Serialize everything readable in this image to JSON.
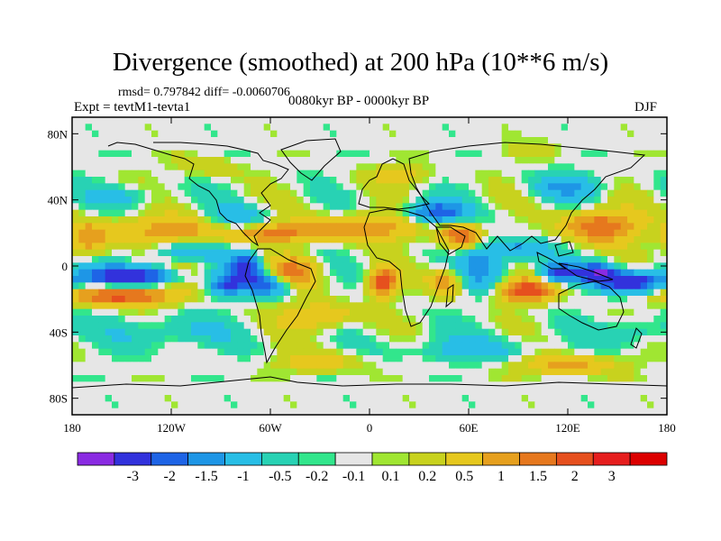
{
  "chart_data": {
    "type": "heatmap",
    "title": "Divergence (smoothed) at 200 hPa (10**6 m/s)",
    "stats_text": "rmsd= 0.797842 diff= -0.0060706",
    "experiment": "Expt = tevtM1-tevta1",
    "period": "0080kyr BP - 0000kyr BP",
    "season": "DJF",
    "x_range": [
      -180,
      180
    ],
    "y_range": [
      -90,
      90
    ],
    "x_ticks": [
      {
        "value": -180,
        "label": "180"
      },
      {
        "value": -120,
        "label": "120W"
      },
      {
        "value": -60,
        "label": "60W"
      },
      {
        "value": 0,
        "label": "0"
      },
      {
        "value": 60,
        "label": "60E"
      },
      {
        "value": 120,
        "label": "120E"
      },
      {
        "value": 180,
        "label": "180"
      }
    ],
    "y_ticks": [
      {
        "value": 80,
        "label": "80N"
      },
      {
        "value": 40,
        "label": "40N"
      },
      {
        "value": 0,
        "label": "0"
      },
      {
        "value": -40,
        "label": "40S"
      },
      {
        "value": -80,
        "label": "80S"
      }
    ],
    "colorbar": {
      "colors": [
        "#8a2be2",
        "#3232dc",
        "#1e64e6",
        "#1e96e6",
        "#28bee6",
        "#28d2b4",
        "#32e68c",
        "#e6e6e6",
        "#a0e632",
        "#c8d21e",
        "#e6c81e",
        "#e6a01e",
        "#e6781e",
        "#e6501e",
        "#e61e1e",
        "#dc0000"
      ],
      "labels": [
        "-3",
        "-2",
        "-1.5",
        "-1",
        "-0.5",
        "-0.2",
        "-0.1",
        "0.1",
        "0.2",
        "0.5",
        "1",
        "1.5",
        "2",
        "3"
      ]
    },
    "field_anomalies": [
      {
        "lon": 158,
        "lat": -10,
        "value": -2.8,
        "rx": 18,
        "ry": 6
      },
      {
        "lon": 138,
        "lat": -4,
        "value": -2.6,
        "rx": 12,
        "ry": 5
      },
      {
        "lon": 115,
        "lat": -4,
        "value": -2.0,
        "rx": 12,
        "ry": 6
      },
      {
        "lon": 140,
        "lat": 24,
        "value": 2.0,
        "rx": 22,
        "ry": 10
      },
      {
        "lon": 95,
        "lat": -15,
        "value": 2.4,
        "rx": 16,
        "ry": 7
      },
      {
        "lon": 90,
        "lat": 10,
        "value": -1.2,
        "rx": 18,
        "ry": 6
      },
      {
        "lon": 40,
        "lat": 32,
        "value": -2.0,
        "rx": 18,
        "ry": 7
      },
      {
        "lon": 55,
        "lat": 18,
        "value": 2.0,
        "rx": 12,
        "ry": 8
      },
      {
        "lon": 68,
        "lat": 0,
        "value": -1.2,
        "rx": 14,
        "ry": 14
      },
      {
        "lon": 46,
        "lat": -10,
        "value": 1.3,
        "rx": 10,
        "ry": 8
      },
      {
        "lon": 8,
        "lat": -10,
        "value": 2.6,
        "rx": 8,
        "ry": 8
      },
      {
        "lon": 2,
        "lat": 24,
        "value": 1.4,
        "rx": 30,
        "ry": 8
      },
      {
        "lon": -55,
        "lat": 20,
        "value": 1.6,
        "rx": 30,
        "ry": 6
      },
      {
        "lon": -45,
        "lat": -4,
        "value": 1.6,
        "rx": 14,
        "ry": 10
      },
      {
        "lon": -75,
        "lat": -2,
        "value": -2.2,
        "rx": 10,
        "ry": 10
      },
      {
        "lon": -60,
        "lat": -12,
        "value": -1.8,
        "rx": 14,
        "ry": 6
      },
      {
        "lon": -88,
        "lat": -12,
        "value": -1.6,
        "rx": 10,
        "ry": 6
      },
      {
        "lon": -80,
        "lat": 28,
        "value": -1.0,
        "rx": 18,
        "ry": 8
      },
      {
        "lon": -140,
        "lat": -6,
        "value": -2.6,
        "rx": 38,
        "ry": 6
      },
      {
        "lon": -150,
        "lat": -18,
        "value": 2.3,
        "rx": 30,
        "ry": 6
      },
      {
        "lon": -110,
        "lat": -5,
        "value": 1.2,
        "rx": 18,
        "ry": 8
      },
      {
        "lon": -110,
        "lat": 8,
        "value": -0.8,
        "rx": 24,
        "ry": 6
      },
      {
        "lon": -120,
        "lat": 22,
        "value": 1.2,
        "rx": 40,
        "ry": 8
      },
      {
        "lon": -150,
        "lat": 42,
        "value": -0.6,
        "rx": 22,
        "ry": 6
      },
      {
        "lon": -170,
        "lat": 16,
        "value": 1.4,
        "rx": 12,
        "ry": 10
      },
      {
        "lon": 120,
        "lat": 48,
        "value": -1.0,
        "rx": 20,
        "ry": 8
      },
      {
        "lon": -30,
        "lat": -30,
        "value": 1.1,
        "rx": 22,
        "ry": 8
      },
      {
        "lon": -120,
        "lat": -40,
        "value": -0.6,
        "rx": 34,
        "ry": 10
      },
      {
        "lon": 60,
        "lat": -50,
        "value": -0.7,
        "rx": 40,
        "ry": 8
      },
      {
        "lon": 120,
        "lat": -60,
        "value": 1.2,
        "rx": 30,
        "ry": 6
      },
      {
        "lon": -30,
        "lat": -58,
        "value": 0.8,
        "rx": 26,
        "ry": 6
      },
      {
        "lon": 160,
        "lat": -40,
        "value": -0.6,
        "rx": 20,
        "ry": 8
      },
      {
        "lon": 20,
        "lat": 55,
        "value": 0.7,
        "rx": 20,
        "ry": 6
      },
      {
        "lon": -100,
        "lat": 60,
        "value": 0.5,
        "rx": 20,
        "ry": 6
      },
      {
        "lon": 100,
        "lat": 70,
        "value": 0.3,
        "rx": 20,
        "ry": 6
      }
    ]
  }
}
